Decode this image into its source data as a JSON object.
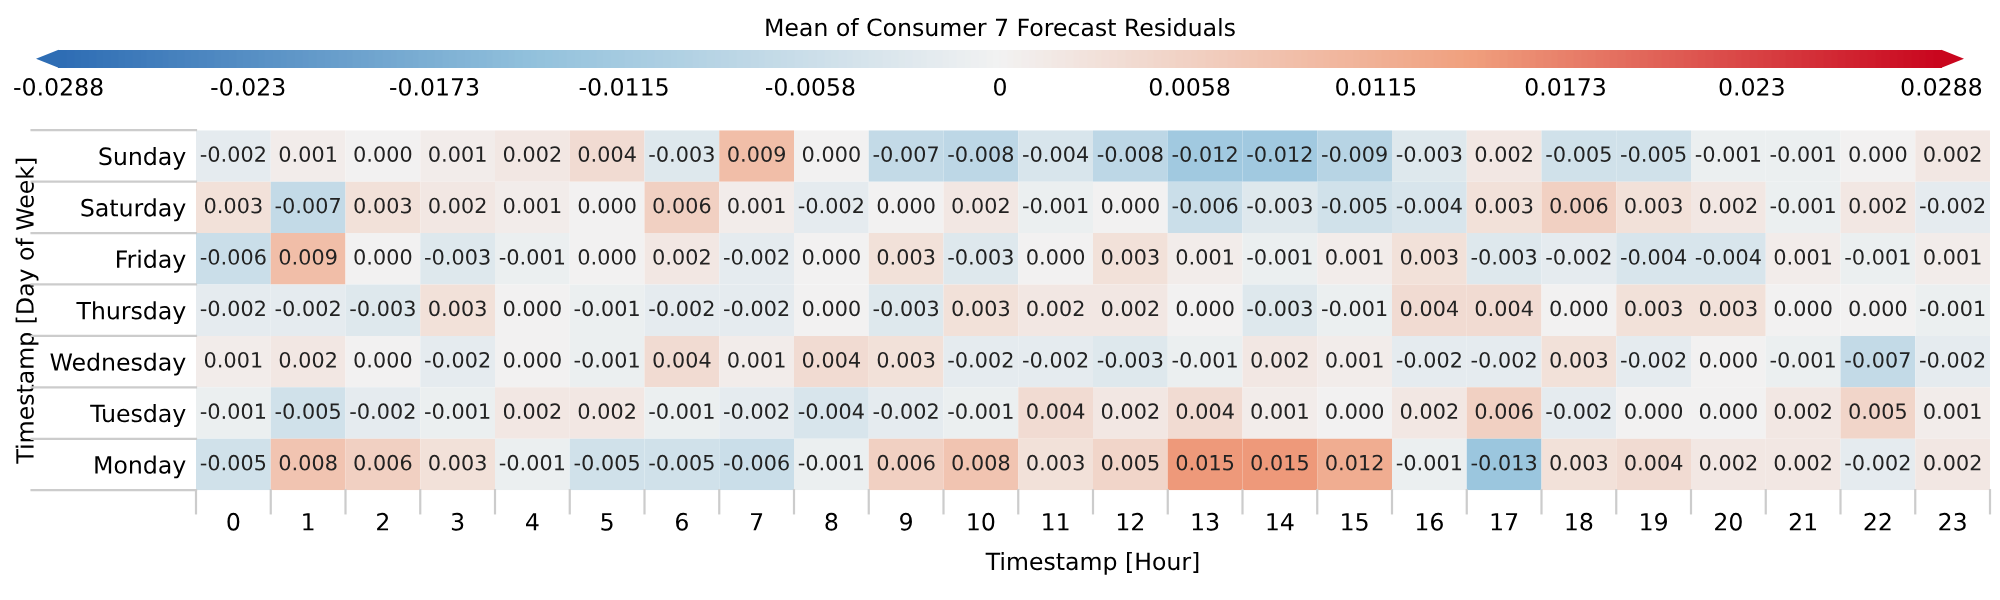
{
  "chart_data": {
    "type": "heatmap",
    "clabel": "Mean of Consumer 7 Forecast Residuals",
    "xlabel": "Timestamp [Hour]",
    "ylabel": "Timestamp [Day of Week]",
    "categories": [
      "0",
      "1",
      "2",
      "3",
      "4",
      "5",
      "6",
      "7",
      "8",
      "9",
      "10",
      "11",
      "12",
      "13",
      "14",
      "15",
      "16",
      "17",
      "18",
      "19",
      "20",
      "21",
      "22",
      "23"
    ],
    "y_categories": [
      "Sunday",
      "Saturday",
      "Friday",
      "Thursday",
      "Wednesday",
      "Tuesday",
      "Monday"
    ],
    "cells": [
      [
        -0.002,
        0.001,
        0.0,
        0.001,
        0.002,
        0.004,
        -0.003,
        0.009,
        0.0,
        -0.007,
        -0.008,
        -0.004,
        -0.008,
        -0.012,
        -0.012,
        -0.009,
        -0.003,
        0.002,
        -0.005,
        -0.005,
        -0.001,
        -0.001,
        0.0,
        0.002
      ],
      [
        0.003,
        -0.007,
        0.003,
        0.002,
        0.001,
        0.0,
        0.006,
        0.001,
        -0.002,
        0.0,
        0.002,
        -0.001,
        0.0,
        -0.006,
        -0.003,
        -0.005,
        -0.004,
        0.003,
        0.006,
        0.003,
        0.002,
        -0.001,
        0.002,
        -0.002
      ],
      [
        -0.006,
        0.009,
        0.0,
        -0.003,
        -0.001,
        0.0,
        0.002,
        -0.002,
        0.0,
        0.003,
        -0.003,
        0.0,
        0.003,
        0.001,
        -0.001,
        0.001,
        0.003,
        -0.003,
        -0.002,
        -0.004,
        -0.004,
        0.001,
        -0.001,
        0.001
      ],
      [
        -0.002,
        -0.002,
        -0.003,
        0.003,
        0.0,
        -0.001,
        -0.002,
        -0.002,
        0.0,
        -0.003,
        0.003,
        0.002,
        0.002,
        0.0,
        -0.003,
        -0.001,
        0.004,
        0.004,
        0.0,
        0.003,
        0.003,
        0.0,
        0.0,
        -0.001
      ],
      [
        0.001,
        0.002,
        0.0,
        -0.002,
        0.0,
        -0.001,
        0.004,
        0.001,
        0.004,
        0.003,
        -0.002,
        -0.002,
        -0.003,
        -0.001,
        0.002,
        0.001,
        -0.002,
        -0.002,
        0.003,
        -0.002,
        0.0,
        -0.001,
        -0.007,
        -0.002
      ],
      [
        -0.001,
        -0.005,
        -0.002,
        -0.001,
        0.002,
        0.002,
        -0.001,
        -0.002,
        -0.004,
        -0.002,
        -0.001,
        0.004,
        0.002,
        0.004,
        0.001,
        0.0,
        0.002,
        0.006,
        -0.002,
        0.0,
        0.0,
        0.002,
        0.005,
        0.001
      ],
      [
        -0.005,
        0.008,
        0.006,
        0.003,
        -0.001,
        -0.005,
        -0.005,
        -0.006,
        -0.001,
        0.006,
        0.008,
        0.003,
        0.005,
        0.015,
        0.015,
        0.012,
        -0.001,
        -0.013,
        0.003,
        0.004,
        0.002,
        0.002,
        -0.002,
        0.002
      ]
    ],
    "cell_labels": [
      [
        "-0.002",
        "0.001",
        "0.000",
        "0.001",
        "0.002",
        "0.004",
        "-0.003",
        "0.009",
        "0.000",
        "-0.007",
        "-0.008",
        "-0.004",
        "-0.008",
        "-0.012",
        "-0.012",
        "-0.009",
        "-0.003",
        "0.002",
        "-0.005",
        "-0.005",
        "-0.001",
        "-0.001",
        "0.000",
        "0.002"
      ],
      [
        "0.003",
        "-0.007",
        "0.003",
        "0.002",
        "0.001",
        "0.000",
        "0.006",
        "0.001",
        "-0.002",
        "0.000",
        "0.002",
        "-0.001",
        "0.000",
        "-0.006",
        "-0.003",
        "-0.005",
        "-0.004",
        "0.003",
        "0.006",
        "0.003",
        "0.002",
        "-0.001",
        "0.002",
        "-0.002"
      ],
      [
        "-0.006",
        "0.009",
        "0.000",
        "-0.003",
        "-0.001",
        "0.000",
        "0.002",
        "-0.002",
        "0.000",
        "0.003",
        "-0.003",
        "0.000",
        "0.003",
        "0.001",
        "-0.001",
        "0.001",
        "0.003",
        "-0.003",
        "-0.002",
        "-0.004",
        "-0.004",
        "0.001",
        "-0.001",
        "0.001"
      ],
      [
        "-0.002",
        "-0.002",
        "-0.003",
        "0.003",
        "0.000",
        "-0.001",
        "-0.002",
        "-0.002",
        "0.000",
        "-0.003",
        "0.003",
        "0.002",
        "0.002",
        "0.000",
        "-0.003",
        "-0.001",
        "0.004",
        "0.004",
        "0.000",
        "0.003",
        "0.003",
        "0.000",
        "0.000",
        "-0.001"
      ],
      [
        "0.001",
        "0.002",
        "0.000",
        "-0.002",
        "0.000",
        "-0.001",
        "0.004",
        "0.001",
        "0.004",
        "0.003",
        "-0.002",
        "-0.002",
        "-0.003",
        "-0.001",
        "0.002",
        "0.001",
        "-0.002",
        "-0.002",
        "0.003",
        "-0.002",
        "0.000",
        "-0.001",
        "-0.007",
        "-0.002"
      ],
      [
        "-0.001",
        "-0.005",
        "-0.002",
        "-0.001",
        "0.002",
        "0.002",
        "-0.001",
        "-0.002",
        "-0.004",
        "-0.002",
        "-0.001",
        "0.004",
        "0.002",
        "0.004",
        "0.001",
        "0.000",
        "0.002",
        "0.006",
        "-0.002",
        "0.000",
        "0.000",
        "0.002",
        "0.005",
        "0.001"
      ],
      [
        "-0.005",
        "0.008",
        "0.006",
        "0.003",
        "-0.001",
        "-0.005",
        "-0.005",
        "-0.006",
        "-0.001",
        "0.006",
        "0.008",
        "0.003",
        "0.005",
        "0.015",
        "0.015",
        "0.012",
        "-0.001",
        "-0.013",
        "0.003",
        "0.004",
        "0.002",
        "0.002",
        "-0.002",
        "0.002"
      ]
    ],
    "clim": [
      -0.0288,
      0.0288
    ],
    "cticks": [
      -0.0288,
      -0.023,
      -0.0173,
      -0.0115,
      -0.0058,
      0,
      0.0058,
      0.0115,
      0.0173,
      0.023,
      0.0288
    ]
  }
}
